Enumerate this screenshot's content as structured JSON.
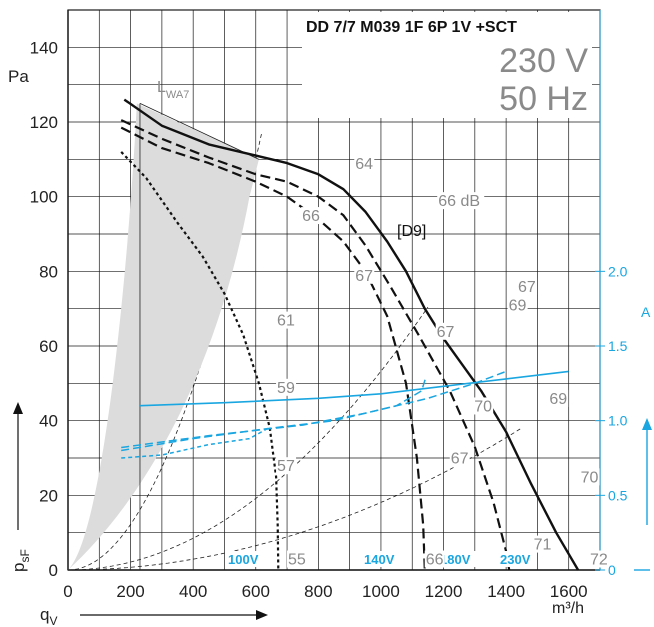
{
  "chart_data": {
    "type": "line",
    "title": "DD 7/7 M039 1F 6P 1V +SCT",
    "voltage": "230 V",
    "frequency": "50 Hz",
    "x_axis": {
      "label_main": "q",
      "label_sub": "V",
      "unit": "m³/h",
      "ticks": [
        "0",
        "200",
        "400",
        "600",
        "800",
        "1000",
        "1200",
        "1400",
        "1600"
      ],
      "range": [
        0,
        1700
      ]
    },
    "y_left": {
      "label_main": "p",
      "label_sub": "sF",
      "unit": "Pa",
      "ticks": [
        "0",
        "20",
        "40",
        "60",
        "80",
        "100",
        "120",
        "140"
      ],
      "range": [
        0,
        150
      ]
    },
    "y_right": {
      "unit": "A",
      "ticks": [
        "0",
        "0.5",
        "1.0",
        "1.5",
        "2.0"
      ],
      "range": [
        0,
        2.0
      ]
    },
    "lwa_label": "L",
    "lwa_sub": "WA7",
    "curve_tag": "[D9]",
    "series": [
      {
        "name": "100V",
        "style": "dotted",
        "points": [
          [
            170,
            112
          ],
          [
            250,
            105
          ],
          [
            350,
            93
          ],
          [
            430,
            84
          ],
          [
            500,
            74
          ],
          [
            560,
            63
          ],
          [
            610,
            50
          ],
          [
            645,
            38
          ],
          [
            665,
            25
          ],
          [
            670,
            12
          ],
          [
            672,
            0
          ]
        ]
      },
      {
        "name": "140V",
        "style": "dashed",
        "points": [
          [
            170,
            118.5
          ],
          [
            300,
            113
          ],
          [
            450,
            109
          ],
          [
            600,
            104
          ],
          [
            700,
            100
          ],
          [
            800,
            94
          ],
          [
            880,
            88
          ],
          [
            950,
            80
          ],
          [
            1020,
            68
          ],
          [
            1080,
            50
          ],
          [
            1115,
            30
          ],
          [
            1135,
            12
          ],
          [
            1140,
            0
          ]
        ]
      },
      {
        "name": "180V",
        "style": "dashed",
        "points": [
          [
            170,
            120.5
          ],
          [
            300,
            115.5
          ],
          [
            450,
            110.5
          ],
          [
            600,
            106
          ],
          [
            700,
            104
          ],
          [
            800,
            100
          ],
          [
            880,
            95
          ],
          [
            950,
            87
          ],
          [
            1030,
            76
          ],
          [
            1120,
            63
          ],
          [
            1220,
            48
          ],
          [
            1300,
            33
          ],
          [
            1360,
            18
          ],
          [
            1400,
            5
          ],
          [
            1410,
            0
          ]
        ]
      },
      {
        "name": "230V",
        "style": "solid",
        "points": [
          [
            180,
            126
          ],
          [
            300,
            119
          ],
          [
            450,
            114
          ],
          [
            600,
            111
          ],
          [
            700,
            109
          ],
          [
            800,
            106
          ],
          [
            880,
            102
          ],
          [
            950,
            96
          ],
          [
            1020,
            88
          ],
          [
            1080,
            80
          ],
          [
            1140,
            70
          ],
          [
            1200,
            62
          ],
          [
            1260,
            55
          ],
          [
            1320,
            48
          ],
          [
            1400,
            37
          ],
          [
            1480,
            23
          ],
          [
            1560,
            10
          ],
          [
            1630,
            0
          ]
        ]
      }
    ],
    "current": [
      {
        "name": "100V",
        "points": [
          [
            170,
            0.75
          ],
          [
            300,
            0.77
          ],
          [
            450,
            0.84
          ],
          [
            580,
            0.88
          ],
          [
            640,
            0.95
          ]
        ]
      },
      {
        "name": "140V",
        "points": [
          [
            170,
            0.8
          ],
          [
            400,
            0.88
          ],
          [
            650,
            0.95
          ],
          [
            850,
            1.0
          ],
          [
            1050,
            1.1
          ],
          [
            1130,
            1.2
          ],
          [
            1145,
            1.3
          ]
        ]
      },
      {
        "name": "180V",
        "points": [
          [
            170,
            0.82
          ],
          [
            450,
            0.9
          ],
          [
            750,
            0.97
          ],
          [
            950,
            1.05
          ],
          [
            1150,
            1.15
          ],
          [
            1300,
            1.25
          ],
          [
            1400,
            1.33
          ]
        ]
      },
      {
        "name": "230V",
        "points": [
          [
            230,
            1.1
          ],
          [
            500,
            1.12
          ],
          [
            800,
            1.15
          ],
          [
            1000,
            1.18
          ],
          [
            1200,
            1.23
          ],
          [
            1400,
            1.28
          ],
          [
            1600,
            1.33
          ]
        ]
      }
    ],
    "voltage_labels": [
      "100V",
      "140V",
      "180V",
      "230V"
    ],
    "db_labels": [
      {
        "text": "64",
        "x": 950,
        "y": 108
      },
      {
        "text": "66 dB",
        "x": 1215,
        "y": 98
      },
      {
        "text": "66",
        "x": 780,
        "y": 94
      },
      {
        "text": "67",
        "x": 950,
        "y": 78
      },
      {
        "text": "67",
        "x": 1470,
        "y": 75
      },
      {
        "text": "69",
        "x": 1440,
        "y": 70
      },
      {
        "text": "61",
        "x": 700,
        "y": 66
      },
      {
        "text": "67",
        "x": 1210,
        "y": 63
      },
      {
        "text": "59",
        "x": 700,
        "y": 48
      },
      {
        "text": "70",
        "x": 1330,
        "y": 43
      },
      {
        "text": "69",
        "x": 1570,
        "y": 45
      },
      {
        "text": "57",
        "x": 700,
        "y": 27
      },
      {
        "text": "67",
        "x": 1255,
        "y": 29
      },
      {
        "text": "70",
        "x": 1670,
        "y": 24
      },
      {
        "text": "71",
        "x": 1520,
        "y": 6
      },
      {
        "text": "55",
        "x": 735,
        "y": 2
      },
      {
        "text": "66",
        "x": 1175,
        "y": 2
      },
      {
        "text": "72",
        "x": 1700,
        "y": 2
      }
    ],
    "grid": true
  }
}
